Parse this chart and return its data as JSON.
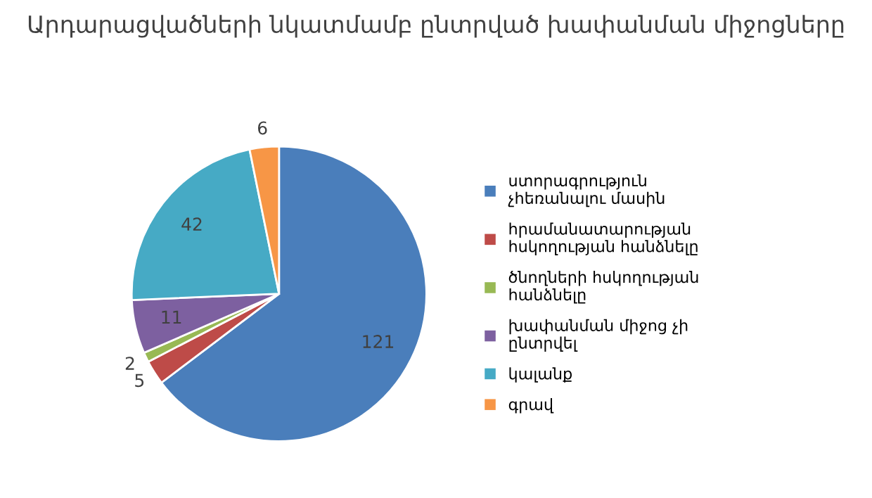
{
  "chart_data": {
    "type": "pie",
    "title": "Արդարացվածների նկատմամբ ընտրված խափանման միջոցները",
    "categories": [
      "ստորագրություն չհեռանալու մասին",
      "հրամանատարության հսկողության հանձնելը",
      "ծնողների հսկողության հանձնելը",
      "խափանման միջոց չի ընտրվել",
      "կալանք",
      "գրավ"
    ],
    "values": [
      121,
      5,
      2,
      11,
      42,
      6
    ],
    "colors": [
      "#4a7ebb",
      "#be4b48",
      "#98b954",
      "#7d60a0",
      "#46aac5",
      "#f79646"
    ],
    "data_labels": true,
    "legend": "right"
  }
}
